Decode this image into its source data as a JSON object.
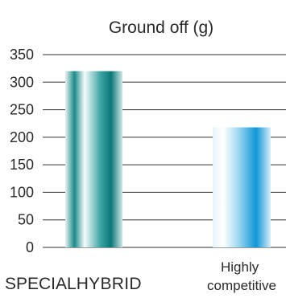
{
  "chart_data": {
    "type": "bar",
    "title": "Ground off (g)",
    "categories": [
      {
        "parts": [
          {
            "text": "SPECIAL",
            "weight": "normal"
          },
          {
            "text": "HYBRID",
            "weight": "light"
          }
        ]
      },
      {
        "lines": [
          "Highly",
          "competitive"
        ]
      }
    ],
    "values": [
      320,
      218
    ],
    "ylim": [
      0,
      350
    ],
    "yticks": [
      "0",
      "50",
      "100",
      "150",
      "200",
      "250",
      "300",
      "350"
    ],
    "grid": true,
    "colors": {
      "bar1": [
        "#0d7f80",
        "#ffffff"
      ],
      "bar2": [
        "#149ad8",
        "#ffffff"
      ],
      "grid": "#333333"
    }
  }
}
